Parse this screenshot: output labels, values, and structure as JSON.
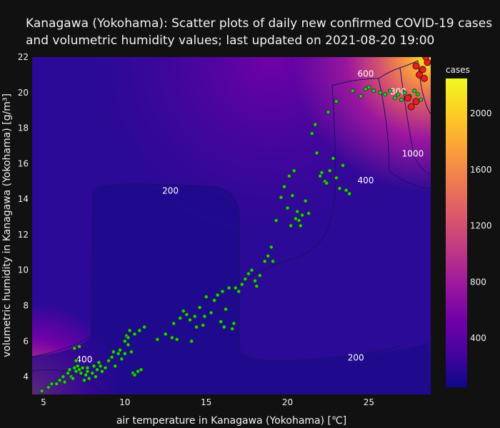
{
  "chart_data": {
    "type": "scatter",
    "title_line1": "Kanagawa (Yokohama): Scatter plots of daily new confirmed COVID-19 cases",
    "title_line2": " and volumetric humidity values; last updated on 2021-08-20 19:00",
    "xlabel": "air temperature in Kanagawa (Yokohama) [℃]",
    "ylabel": "volumetric humidity in Kanagawa (Yokohama) [g/m³]",
    "xlim": [
      4.3,
      28.8
    ],
    "ylim": [
      3,
      22
    ],
    "x_ticks": [
      5,
      10,
      15,
      20,
      25
    ],
    "y_ticks": [
      4,
      6,
      8,
      10,
      12,
      14,
      16,
      18,
      20,
      22
    ],
    "colorbar": {
      "title": "cases",
      "range": [
        50,
        2250
      ],
      "ticks": [
        400,
        800,
        1200,
        1600,
        2000
      ],
      "colorscale": [
        "#0d0887",
        "#46039f",
        "#7201a8",
        "#9c179e",
        "#bd3786",
        "#d8576b",
        "#ed7953",
        "#fb9f3a",
        "#fdca26",
        "#f0f921"
      ]
    },
    "contour_labels": [
      {
        "text": "600",
        "x": 24.8,
        "y": 20.9
      },
      {
        "text": "800",
        "x": 26.8,
        "y": 19.9
      },
      {
        "text": "1000",
        "x": 27.7,
        "y": 16.4
      },
      {
        "text": "400",
        "x": 24.8,
        "y": 14.9
      },
      {
        "text": "200",
        "x": 12.8,
        "y": 14.3
      },
      {
        "text": "200",
        "x": 24.2,
        "y": 4.9
      },
      {
        "text": "400",
        "x": 7.5,
        "y": 4.8
      }
    ],
    "points": [
      [
        4.9,
        3.2
      ],
      [
        5.3,
        3.4
      ],
      [
        5.5,
        3.6
      ],
      [
        5.8,
        3.6
      ],
      [
        6.0,
        3.8
      ],
      [
        6.2,
        4.0
      ],
      [
        6.3,
        3.7
      ],
      [
        6.5,
        4.2
      ],
      [
        6.6,
        4.4
      ],
      [
        6.7,
        4.0
      ],
      [
        6.8,
        3.9
      ],
      [
        6.9,
        4.5
      ],
      [
        7.0,
        4.3
      ],
      [
        7.1,
        4.6
      ],
      [
        7.2,
        4.4
      ],
      [
        7.3,
        4.2
      ],
      [
        7.4,
        4.5
      ],
      [
        7.5,
        3.8
      ],
      [
        7.6,
        4.1
      ],
      [
        7.7,
        4.3
      ],
      [
        7.8,
        3.9
      ],
      [
        8.0,
        4.2
      ],
      [
        8.1,
        4.6
      ],
      [
        8.2,
        4.0
      ],
      [
        8.3,
        4.4
      ],
      [
        8.4,
        4.8
      ],
      [
        8.6,
        4.3
      ],
      [
        8.8,
        4.5
      ],
      [
        9.0,
        4.9
      ],
      [
        9.2,
        5.1
      ],
      [
        9.4,
        4.6
      ],
      [
        9.6,
        5.3
      ],
      [
        9.8,
        5.0
      ],
      [
        10.0,
        5.3
      ],
      [
        10.1,
        6.3
      ],
      [
        10.2,
        5.8
      ],
      [
        10.3,
        6.6
      ],
      [
        10.4,
        5.4
      ],
      [
        10.5,
        4.2
      ],
      [
        10.6,
        4.1
      ],
      [
        10.8,
        4.3
      ],
      [
        11.0,
        4.4
      ],
      [
        10.9,
        6.6
      ],
      [
        11.2,
        6.8
      ],
      [
        6.9,
        5.6
      ],
      [
        7.2,
        5.7
      ],
      [
        7.0,
        4.9
      ],
      [
        7.7,
        4.5
      ],
      [
        8.5,
        4.6
      ],
      [
        9.3,
        5.4
      ],
      [
        9.7,
        5.5
      ],
      [
        10.0,
        6.0
      ],
      [
        10.2,
        6.2
      ],
      [
        10.6,
        6.4
      ],
      [
        12.0,
        6.1
      ],
      [
        12.5,
        6.4
      ],
      [
        12.9,
        6.2
      ],
      [
        13.0,
        7.0
      ],
      [
        13.2,
        6.1
      ],
      [
        13.4,
        7.3
      ],
      [
        13.6,
        7.7
      ],
      [
        13.8,
        7.5
      ],
      [
        14.0,
        7.2
      ],
      [
        14.1,
        6.0
      ],
      [
        14.3,
        7.4
      ],
      [
        14.4,
        6.8
      ],
      [
        14.6,
        7.9
      ],
      [
        14.8,
        6.9
      ],
      [
        14.9,
        7.4
      ],
      [
        15.0,
        8.5
      ],
      [
        15.3,
        7.6
      ],
      [
        15.5,
        8.3
      ],
      [
        15.7,
        8.6
      ],
      [
        15.9,
        7.1
      ],
      [
        16.0,
        8.8
      ],
      [
        16.1,
        6.8
      ],
      [
        16.2,
        7.8
      ],
      [
        16.4,
        9.0
      ],
      [
        16.6,
        6.7
      ],
      [
        16.7,
        7.0
      ],
      [
        16.8,
        9.0
      ],
      [
        17.0,
        8.8
      ],
      [
        17.2,
        9.2
      ],
      [
        17.4,
        9.5
      ],
      [
        17.6,
        9.8
      ],
      [
        17.8,
        10.0
      ],
      [
        18.0,
        9.4
      ],
      [
        18.1,
        9.1
      ],
      [
        18.3,
        9.7
      ],
      [
        18.6,
        10.5
      ],
      [
        18.8,
        10.8
      ],
      [
        19.0,
        11.3
      ],
      [
        19.1,
        10.5
      ],
      [
        19.3,
        12.8
      ],
      [
        19.6,
        14.1
      ],
      [
        19.8,
        14.7
      ],
      [
        20.0,
        13.5
      ],
      [
        20.1,
        15.3
      ],
      [
        20.2,
        12.5
      ],
      [
        20.3,
        14.2
      ],
      [
        20.4,
        15.6
      ],
      [
        20.5,
        12.9
      ],
      [
        20.6,
        13.3
      ],
      [
        20.7,
        12.8
      ],
      [
        20.8,
        12.5
      ],
      [
        20.9,
        13.1
      ],
      [
        21.1,
        13.9
      ],
      [
        21.3,
        13.2
      ],
      [
        21.5,
        17.7
      ],
      [
        21.7,
        18.2
      ],
      [
        21.8,
        16.6
      ],
      [
        22.0,
        15.3
      ],
      [
        22.1,
        15.5
      ],
      [
        22.3,
        15.0
      ],
      [
        22.4,
        14.9
      ],
      [
        22.6,
        15.6
      ],
      [
        22.8,
        16.3
      ],
      [
        23.0,
        15.2
      ],
      [
        23.2,
        14.6
      ],
      [
        23.4,
        15.9
      ],
      [
        23.6,
        14.5
      ],
      [
        23.8,
        14.3
      ],
      [
        22.5,
        18.9
      ],
      [
        23.0,
        19.5
      ],
      [
        24.0,
        20.1
      ],
      [
        24.5,
        19.8
      ],
      [
        24.8,
        20.2
      ],
      [
        25.0,
        20.3
      ],
      [
        25.3,
        20.1
      ],
      [
        25.7,
        20.0
      ],
      [
        26.0,
        19.9
      ],
      [
        26.3,
        20.1
      ],
      [
        26.6,
        19.7
      ],
      [
        26.8,
        19.9
      ],
      [
        27.0,
        19.6
      ],
      [
        27.2,
        20.0
      ],
      [
        27.5,
        19.8
      ],
      [
        27.8,
        20.1
      ],
      [
        28.0,
        19.9
      ],
      [
        28.2,
        19.6
      ]
    ],
    "red_points": [
      [
        27.9,
        21.5
      ],
      [
        28.1,
        21.0
      ],
      [
        28.3,
        21.3
      ],
      [
        28.4,
        20.8
      ],
      [
        28.6,
        21.7
      ],
      [
        28.5,
        22.0
      ],
      [
        27.6,
        19.2
      ],
      [
        27.4,
        19.7
      ],
      [
        27.9,
        19.5
      ]
    ]
  }
}
